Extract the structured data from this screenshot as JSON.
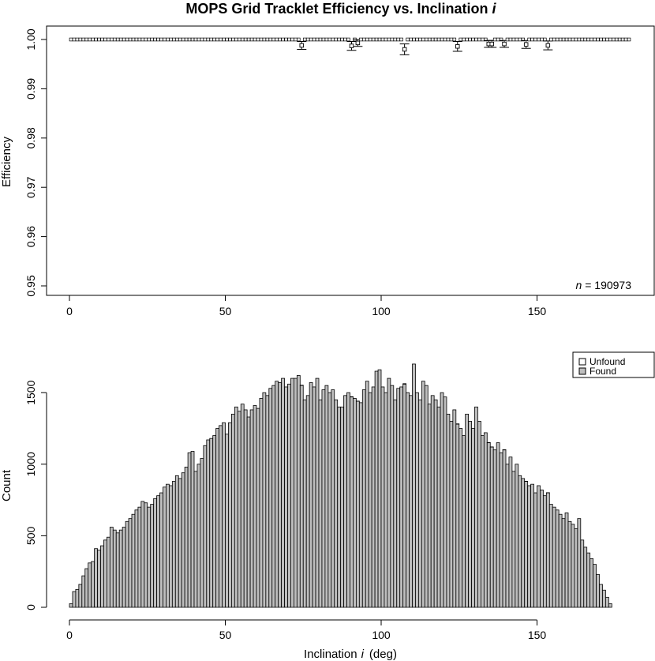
{
  "chart_data": [
    {
      "type": "scatter",
      "title": "MOPS Grid Tracklet Efficiency vs. Inclination",
      "title_symbol": "i",
      "xlabel": "",
      "ylabel": "Efficiency",
      "xlim": [
        0,
        180
      ],
      "ylim": [
        0.95,
        1.0
      ],
      "xticks": [
        "0",
        "50",
        "100",
        "150"
      ],
      "yticks": [
        "0.95",
        "0.96",
        "0.97",
        "0.98",
        "0.99",
        "1.00"
      ],
      "annotation_symbol": "n",
      "annotation_value": " = 190973",
      "bin_width": 1,
      "baseline_efficiency": 1.0,
      "points_below_one": [
        {
          "x": 74,
          "y": 0.9988,
          "err": 0.0008
        },
        {
          "x": 90,
          "y": 0.9987,
          "err": 0.0009
        },
        {
          "x": 92,
          "y": 0.9993,
          "err": 0.0007
        },
        {
          "x": 107,
          "y": 0.998,
          "err": 0.0011
        },
        {
          "x": 124,
          "y": 0.9986,
          "err": 0.001
        },
        {
          "x": 134,
          "y": 0.9991,
          "err": 0.0007
        },
        {
          "x": 135,
          "y": 0.9991,
          "err": 0.0007
        },
        {
          "x": 139,
          "y": 0.9991,
          "err": 0.0007
        },
        {
          "x": 146,
          "y": 0.999,
          "err": 0.0008
        },
        {
          "x": 153,
          "y": 0.9988,
          "err": 0.0009
        }
      ]
    },
    {
      "type": "bar",
      "title": "",
      "xlabel": "Inclination",
      "xlabel_symbol": "i",
      "xlabel_unit": "(deg)",
      "ylabel": "Count",
      "xlim": [
        0,
        180
      ],
      "ylim": [
        0,
        1700
      ],
      "xticks": [
        "0",
        "50",
        "100",
        "150"
      ],
      "yticks": [
        "0",
        "500",
        "1000",
        "1500"
      ],
      "bin_width": 1,
      "legend_position": "top-right",
      "series": [
        {
          "name": "Unfound",
          "color": "#ffffff",
          "values": [
            0,
            0,
            0,
            0,
            0,
            0,
            0,
            0,
            0,
            0,
            0,
            0,
            0,
            0,
            0,
            0,
            0,
            0,
            0,
            0,
            0,
            0,
            0,
            0,
            0,
            0,
            0,
            0,
            0,
            0,
            0,
            0,
            0,
            0,
            0,
            0,
            0,
            0,
            0,
            0,
            0,
            0,
            0,
            0,
            0,
            0,
            0,
            0,
            0,
            0,
            0,
            0,
            0,
            0,
            0,
            0,
            0,
            0,
            0,
            0,
            0,
            0,
            0,
            0,
            0,
            0,
            0,
            0,
            0,
            0,
            0,
            0,
            0,
            0,
            2,
            0,
            0,
            0,
            0,
            0,
            0,
            0,
            0,
            0,
            0,
            0,
            0,
            0,
            0,
            0,
            2,
            0,
            1,
            0,
            0,
            0,
            0,
            0,
            0,
            0,
            0,
            0,
            0,
            0,
            0,
            0,
            0,
            3,
            0,
            0,
            0,
            0,
            0,
            0,
            0,
            0,
            0,
            0,
            0,
            0,
            0,
            0,
            0,
            0,
            2,
            0,
            0,
            0,
            0,
            0,
            0,
            0,
            0,
            0,
            1,
            1,
            0,
            0,
            0,
            1,
            0,
            0,
            0,
            0,
            0,
            0,
            1,
            0,
            0,
            0,
            0,
            0,
            0,
            1,
            0,
            0,
            0,
            0,
            0,
            0,
            0,
            0,
            0,
            0,
            0,
            0,
            0,
            0,
            0,
            0,
            0,
            0,
            0,
            0,
            0,
            0,
            0,
            0,
            0,
            0
          ]
        },
        {
          "name": "Found",
          "color": "#bebebe",
          "values": [
            25,
            110,
            125,
            160,
            220,
            270,
            310,
            320,
            410,
            400,
            430,
            470,
            490,
            560,
            540,
            520,
            540,
            560,
            600,
            620,
            650,
            680,
            700,
            740,
            730,
            700,
            720,
            760,
            780,
            800,
            840,
            860,
            850,
            880,
            920,
            900,
            940,
            980,
            1080,
            1090,
            950,
            1000,
            1040,
            1130,
            1170,
            1180,
            1200,
            1250,
            1270,
            1290,
            1210,
            1290,
            1350,
            1400,
            1370,
            1420,
            1380,
            1330,
            1380,
            1410,
            1390,
            1460,
            1500,
            1480,
            1530,
            1550,
            1580,
            1570,
            1600,
            1540,
            1560,
            1600,
            1600,
            1620,
            1550,
            1450,
            1480,
            1570,
            1540,
            1600,
            1450,
            1520,
            1550,
            1500,
            1520,
            1450,
            1400,
            1400,
            1480,
            1500,
            1470,
            1460,
            1440,
            1430,
            1520,
            1580,
            1500,
            1540,
            1650,
            1660,
            1540,
            1500,
            1600,
            1550,
            1450,
            1530,
            1540,
            1560,
            1500,
            1480,
            1700,
            1500,
            1450,
            1580,
            1550,
            1420,
            1480,
            1450,
            1400,
            1500,
            1470,
            1350,
            1300,
            1380,
            1280,
            1250,
            1200,
            1350,
            1300,
            1250,
            1400,
            1300,
            1200,
            1220,
            1150,
            1120,
            1100,
            1150,
            1080,
            1100,
            1000,
            1050,
            950,
            1000,
            920,
            900,
            880,
            850,
            860,
            800,
            850,
            820,
            780,
            800,
            720,
            700,
            680,
            650,
            620,
            660,
            600,
            580,
            550,
            620,
            470,
            420,
            380,
            340,
            300,
            230,
            160,
            120,
            70,
            25
          ]
        }
      ]
    }
  ]
}
